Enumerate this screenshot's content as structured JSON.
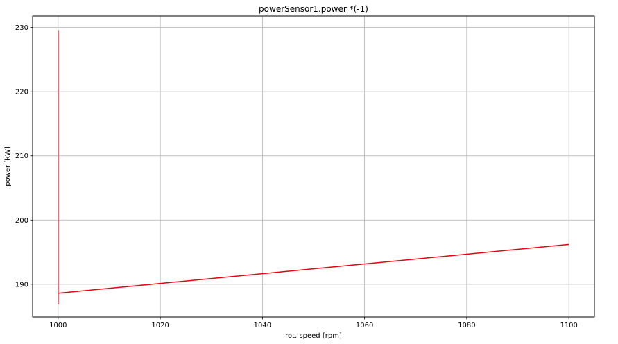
{
  "chart_data": {
    "type": "line",
    "title": "powerSensor1.power *(-1)",
    "xlabel": "rot. speed [rpm]",
    "ylabel": "power [kW]",
    "xlim": [
      995,
      1105
    ],
    "ylim": [
      184.9,
      231.8
    ],
    "xticks": [
      1000,
      1020,
      1040,
      1060,
      1080,
      1100
    ],
    "yticks": [
      190,
      200,
      210,
      220,
      230
    ],
    "grid": true,
    "series": [
      {
        "color": "#e8000b",
        "x": [
          1000,
          1000,
          1000,
          1100
        ],
        "y": [
          229.6,
          186.9,
          188.6,
          196.2
        ]
      }
    ]
  }
}
